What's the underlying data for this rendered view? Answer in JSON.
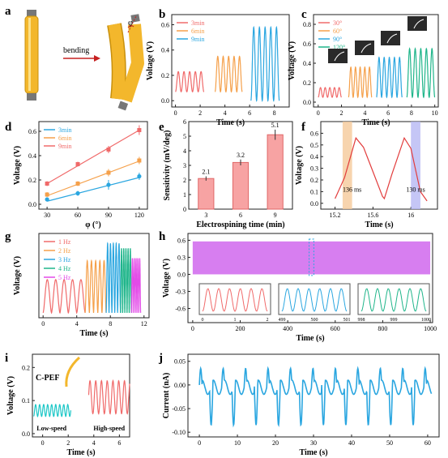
{
  "colors": {
    "red": "#f06a6a",
    "orange": "#f5a04a",
    "blue": "#2aa6e0",
    "green": "#1fb58a",
    "magenta": "#e34be8",
    "cyan": "#1cc7c7",
    "purple": "#d77ef0",
    "tube": "#f3b72c",
    "tubeEdge": "#c8900d",
    "dark": "#222222",
    "panelGray": "#2a2a2a",
    "shadeOrange": "#f5c99a",
    "shadeBlue": "#b7b8f4"
  },
  "panel_a": {
    "letter": "a",
    "action": "bending",
    "angle": "φ"
  },
  "chart_data": [
    {
      "id": "b",
      "letter": "b",
      "type": "line",
      "title": "",
      "xlabel": "Time (s)",
      "ylabel": "Voltage (V)",
      "xlim": [
        -0.3,
        9.2
      ],
      "ylim": [
        -0.05,
        0.68
      ],
      "xticks": [
        0,
        2,
        4,
        6,
        8
      ],
      "yticks": [
        0.0,
        0.2,
        0.4,
        0.6
      ],
      "series": [
        {
          "name": "3min",
          "color": "red",
          "start": 0.0,
          "end": 2.3,
          "cycles": 5,
          "min": 0.07,
          "max": 0.23
        },
        {
          "name": "6min",
          "color": "orange",
          "start": 3.2,
          "end": 5.4,
          "cycles": 5,
          "min": 0.07,
          "max": 0.35
        },
        {
          "name": "9min",
          "color": "blue",
          "start": 6.1,
          "end": 8.4,
          "cycles": 5,
          "min": 0.0,
          "max": 0.58
        }
      ],
      "legend": "top-left"
    },
    {
      "id": "c",
      "letter": "c",
      "type": "line",
      "title": "",
      "xlabel": "Time (s)",
      "ylabel": "Voltage (V)",
      "xlim": [
        -0.4,
        10.3
      ],
      "ylim": [
        -0.05,
        0.9
      ],
      "xticks": [
        0,
        2,
        4,
        6,
        8,
        10
      ],
      "yticks": [
        0.0,
        0.2,
        0.4,
        0.6,
        0.8
      ],
      "series": [
        {
          "name": "30°",
          "color": "red",
          "start": 0.0,
          "end": 2.0,
          "cycles": 5,
          "min": 0.05,
          "max": 0.15
        },
        {
          "name": "60°",
          "color": "orange",
          "start": 2.6,
          "end": 4.6,
          "cycles": 5,
          "min": 0.05,
          "max": 0.36
        },
        {
          "name": "90°",
          "color": "blue",
          "start": 5.0,
          "end": 7.2,
          "cycles": 5,
          "min": 0.05,
          "max": 0.46
        },
        {
          "name": "120°",
          "color": "green",
          "start": 7.6,
          "end": 10.0,
          "cycles": 5,
          "min": 0.05,
          "max": 0.55
        }
      ],
      "legend": "top-left"
    },
    {
      "id": "d",
      "letter": "d",
      "type": "scatter",
      "title": "",
      "xlabel": "φ (°)",
      "ylabel": "Voltage (V)",
      "xlim": [
        22,
        128
      ],
      "ylim": [
        -0.04,
        0.68
      ],
      "xticks": [
        30,
        60,
        90,
        120
      ],
      "yticks": [
        0.0,
        0.2,
        0.4,
        0.6
      ],
      "series": [
        {
          "name": "3min",
          "color": "blue",
          "marker": "circle",
          "x": [
            30,
            60,
            90,
            120
          ],
          "y": [
            0.04,
            0.09,
            0.16,
            0.23
          ],
          "err": [
            0.01,
            0.02,
            0.04,
            0.03
          ],
          "fit": [
            0.025,
            0.22
          ]
        },
        {
          "name": "6min",
          "color": "orange",
          "marker": "square",
          "x": [
            30,
            60,
            90,
            120
          ],
          "y": [
            0.08,
            0.17,
            0.26,
            0.36
          ],
          "err": [
            0.02,
            0.02,
            0.03,
            0.03
          ],
          "fit": [
            0.07,
            0.355
          ]
        },
        {
          "name": "9min",
          "color": "red",
          "marker": "square",
          "x": [
            30,
            60,
            90,
            120
          ],
          "y": [
            0.17,
            0.33,
            0.45,
            0.61
          ],
          "err": [
            0.02,
            0.02,
            0.03,
            0.04
          ],
          "fit": [
            0.17,
            0.61
          ]
        }
      ],
      "legend": "top-left"
    },
    {
      "id": "e",
      "letter": "e",
      "type": "bar",
      "title": "",
      "xlabel": "Electrospining time (min)",
      "ylabel": "Sensitivity (mV/deg)",
      "ylim": [
        0,
        6
      ],
      "categories": [
        "3",
        "6",
        "9"
      ],
      "values": [
        2.1,
        3.2,
        5.1
      ],
      "labels": [
        "2.1",
        "3.2",
        "5.1"
      ],
      "err": [
        0.15,
        0.2,
        0.35
      ],
      "yticks": [
        0,
        1,
        2,
        3,
        4,
        5,
        6
      ]
    },
    {
      "id": "f",
      "letter": "f",
      "type": "line",
      "title": "",
      "xlabel": "Time (s)",
      "ylabel": "Voltage (V)",
      "xlim": [
        15.05,
        16.28
      ],
      "ylim": [
        -0.05,
        0.7
      ],
      "xticks": [
        15.2,
        15.6,
        16.0
      ],
      "yticks": [
        0.0,
        0.1,
        0.2,
        0.3,
        0.4,
        0.5,
        0.6
      ],
      "points": [
        [
          15.2,
          0.04
        ],
        [
          15.3,
          0.22
        ],
        [
          15.42,
          0.56
        ],
        [
          15.5,
          0.48
        ],
        [
          15.6,
          0.27
        ],
        [
          15.7,
          0.06
        ],
        [
          15.72,
          0.04
        ],
        [
          15.8,
          0.25
        ],
        [
          15.93,
          0.56
        ],
        [
          16.0,
          0.47
        ],
        [
          16.1,
          0.1
        ],
        [
          16.17,
          0.02
        ]
      ],
      "annotations": [
        {
          "text": "136 ms",
          "x": 15.38,
          "y": 0.1
        },
        {
          "text": "130 ms",
          "x": 16.05,
          "y": 0.1
        }
      ],
      "shade": [
        {
          "from": 15.28,
          "to": 15.38,
          "color": "shadeOrange"
        },
        {
          "from": 16.0,
          "to": 16.1,
          "color": "shadeBlue"
        }
      ]
    },
    {
      "id": "g",
      "letter": "g",
      "type": "line",
      "title": "",
      "xlabel": "Time (s)",
      "ylabel": "Voltage (V)",
      "xlim": [
        -0.5,
        12.6
      ],
      "ylim": [
        0,
        0.17
      ],
      "xticks": [
        0,
        4,
        8,
        12
      ],
      "yticks": [],
      "series": [
        {
          "name": "1 Hz",
          "color": "red",
          "start": 0.0,
          "end": 5.0,
          "cycles": 5,
          "min": 0.01,
          "max": 0.077
        },
        {
          "name": "2 Hz",
          "color": "orange",
          "start": 5.0,
          "end": 7.5,
          "cycles": 5,
          "min": 0.01,
          "max": 0.115
        },
        {
          "name": "3 Hz",
          "color": "blue",
          "start": 7.5,
          "end": 9.2,
          "cycles": 5,
          "min": 0.01,
          "max": 0.15
        },
        {
          "name": "4 Hz",
          "color": "green",
          "start": 9.2,
          "end": 10.5,
          "cycles": 5,
          "min": 0.01,
          "max": 0.14
        },
        {
          "name": "5 Hz",
          "color": "magenta",
          "start": 10.5,
          "end": 11.6,
          "cycles": 5,
          "min": 0.01,
          "max": 0.12
        }
      ],
      "legend": "top-left"
    },
    {
      "id": "h",
      "letter": "h",
      "type": "area",
      "title": "",
      "xlabel": "Time (s)",
      "ylabel": "Voltage (V)",
      "xlim": [
        -20,
        1010
      ],
      "ylim": [
        -0.85,
        0.72
      ],
      "xticks": [
        0,
        200,
        400,
        600,
        800,
        1000
      ],
      "yticks": [
        -0.6,
        -0.3,
        0.0,
        0.3,
        0.6
      ],
      "band": {
        "min": 0.0,
        "max": 0.58,
        "color": "purple"
      },
      "insets": [
        {
          "color": "red",
          "xticks": [
            "0",
            "1",
            "2"
          ],
          "yticks": [
            "0.6",
            "0.4",
            "0.2",
            "0.0"
          ],
          "ylabel": "Voltage (V)"
        },
        {
          "color": "blue",
          "xticks": [
            "499",
            "500",
            "501"
          ],
          "yticks": [
            "0.6",
            "0.4",
            "0.2",
            "0.0"
          ],
          "ylabel": "Voltage (V)"
        },
        {
          "color": "green",
          "xticks": [
            "998",
            "999",
            "1000"
          ],
          "yticks": [
            "0.6",
            "0.4",
            "0.2",
            "0.0"
          ],
          "ylabel": "Voltage (V)"
        }
      ]
    },
    {
      "id": "i",
      "letter": "i",
      "type": "line",
      "title": "",
      "xlabel": "Time (s)",
      "ylabel": "Voltage (V)",
      "xlim": [
        -0.8,
        6.8
      ],
      "ylim": [
        -0.01,
        0.24
      ],
      "xticks": [
        0,
        2,
        4,
        6
      ],
      "yticks": [
        0.0,
        0.1,
        0.2
      ],
      "series": [
        {
          "name": "Low-speed",
          "color": "cyan",
          "start": -0.7,
          "end": 2.2,
          "base": 0.07,
          "amp": 0.03
        },
        {
          "name": "High-speed",
          "color": "red",
          "start": 3.6,
          "end": 6.8,
          "base": 0.11,
          "amp": 0.05
        }
      ],
      "labels": {
        "fiber": "C-PEF",
        "low": "Low-speed",
        "high": "High-speed"
      }
    },
    {
      "id": "j",
      "letter": "j",
      "type": "line",
      "title": "",
      "xlabel": "Time (s)",
      "ylabel": "Current (nA)",
      "xlim": [
        -3,
        63
      ],
      "ylim": [
        -0.11,
        0.065
      ],
      "xticks": [
        0,
        10,
        20,
        30,
        40,
        50,
        60
      ],
      "yticks": [
        -0.1,
        -0.05,
        0.0,
        0.05
      ],
      "color": "blue",
      "cycle_period": 5.9,
      "start": 0,
      "end": 61
    }
  ]
}
